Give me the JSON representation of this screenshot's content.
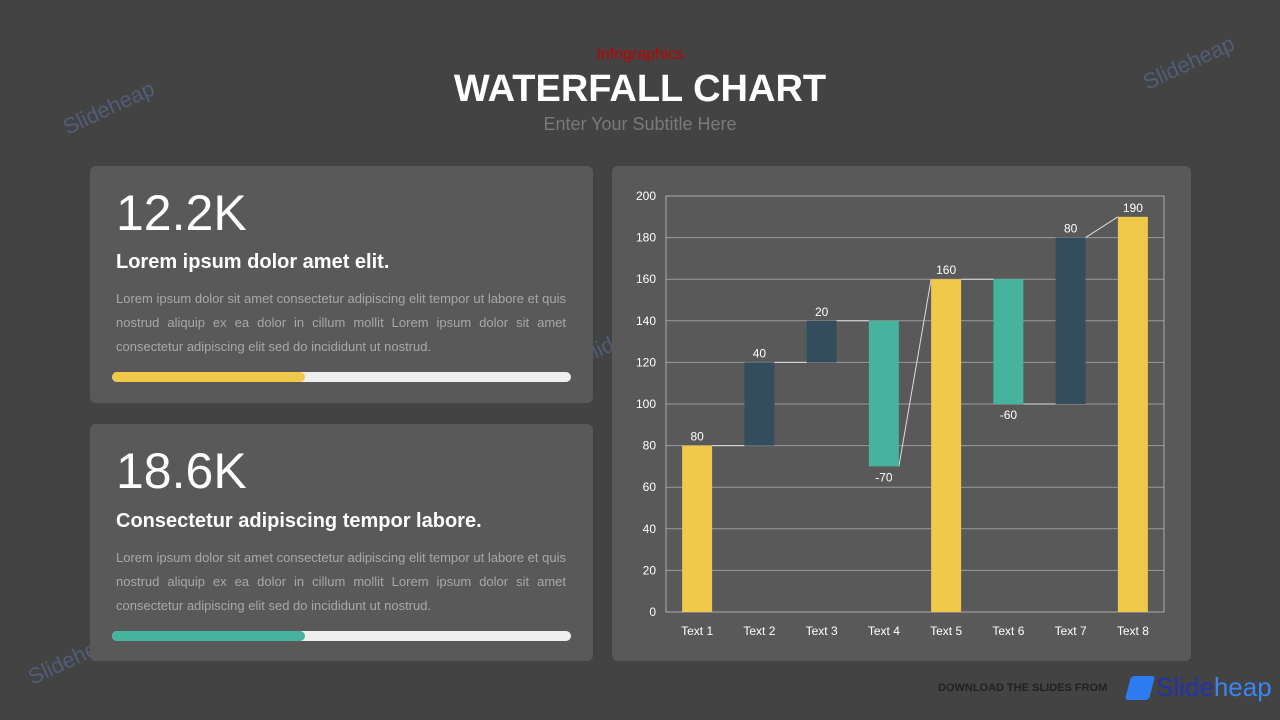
{
  "header": {
    "eyebrow": "Infographics",
    "title": "WATERFALL CHART",
    "subtitle": "Enter Your Subtitle Here"
  },
  "cards": [
    {
      "stat": "12.2K",
      "heading": "Lorem ipsum dolor amet elit.",
      "body": "Lorem ipsum dolor sit amet consectetur adipiscing elit tempor ut labore et quis nostrud aliquip ex ea dolor in cillum mollit Lorem ipsum dolor sit amet consectetur adipiscing elit sed do incididunt ut nostrud.",
      "progress": 42,
      "color": "#f0c84a"
    },
    {
      "stat": "18.6K",
      "heading": "Consectetur adipiscing tempor labore.",
      "body": "Lorem ipsum dolor sit amet consectetur adipiscing elit tempor ut labore et quis nostrud aliquip ex ea dolor in cillum mollit Lorem ipsum dolor sit amet consectetur adipiscing elit sed do incididunt ut nostrud.",
      "progress": 42,
      "color": "#45b39d"
    }
  ],
  "chart_data": {
    "type": "bar",
    "subtype": "waterfall",
    "categories": [
      "Text 1",
      "Text 2",
      "Text 3",
      "Text 4",
      "Text 5",
      "Text 6",
      "Text 7",
      "Text 8"
    ],
    "labels": [
      "80",
      "40",
      "20",
      "-70",
      "160",
      "-60",
      "80",
      "190"
    ],
    "bars": [
      {
        "base": 0,
        "top": 80,
        "kind": "total"
      },
      {
        "base": 80,
        "top": 120,
        "kind": "increase"
      },
      {
        "base": 120,
        "top": 140,
        "kind": "increase"
      },
      {
        "base": 70,
        "top": 140,
        "kind": "decrease"
      },
      {
        "base": 0,
        "top": 160,
        "kind": "total"
      },
      {
        "base": 100,
        "top": 160,
        "kind": "decrease"
      },
      {
        "base": 100,
        "top": 180,
        "kind": "increase"
      },
      {
        "base": 0,
        "top": 190,
        "kind": "total"
      }
    ],
    "ylim": [
      0,
      200
    ],
    "yticks": [
      0,
      20,
      40,
      60,
      80,
      100,
      120,
      140,
      160,
      180,
      200
    ],
    "grid": true,
    "colors": {
      "total": "#f0c84a",
      "increase": "#344d5c",
      "decrease": "#45b39d"
    }
  },
  "footer": {
    "text": "DOWNLOAD THE SLIDES FROM",
    "brand_a": "Slide",
    "brand_b": "heap"
  },
  "watermark": "Slideheap"
}
